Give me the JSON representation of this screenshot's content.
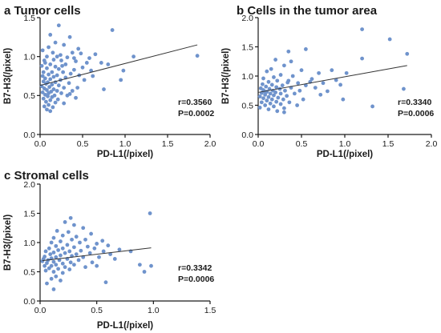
{
  "point_color": "#6f93cc",
  "line_color": "#333333",
  "chart_data": [
    {
      "type": "scatter",
      "title": "a Tumor cells",
      "xlabel": "PD-L1(/pixel)",
      "ylabel": "B7-H3(/pixel)",
      "xlim": [
        0,
        2.0
      ],
      "ylim": [
        0,
        1.5
      ],
      "xticks": [
        "0.0",
        "0.5",
        "1.0",
        "1.5",
        "2.0"
      ],
      "yticks": [
        "0.0",
        "0.5",
        "1.0",
        "1.5"
      ],
      "stats": [
        "r=0.3560",
        "P=0.0002"
      ],
      "fit": [
        [
          0.0,
          0.63
        ],
        [
          1.85,
          1.15
        ]
      ],
      "points": [
        [
          0.22,
          1.4
        ],
        [
          0.85,
          1.34
        ],
        [
          0.12,
          1.28
        ],
        [
          0.35,
          1.25
        ],
        [
          0.18,
          1.18
        ],
        [
          0.28,
          1.15
        ],
        [
          0.1,
          1.12
        ],
        [
          0.45,
          1.1
        ],
        [
          0.03,
          1.08
        ],
        [
          0.15,
          1.05
        ],
        [
          0.38,
          1.05
        ],
        [
          0.48,
          1.04
        ],
        [
          0.65,
          1.03
        ],
        [
          0.08,
          1.0
        ],
        [
          0.2,
          1.0
        ],
        [
          0.32,
          0.99
        ],
        [
          0.58,
          0.98
        ],
        [
          1.1,
          1.0
        ],
        [
          1.85,
          1.01
        ],
        [
          0.05,
          0.95
        ],
        [
          0.25,
          0.95
        ],
        [
          0.42,
          0.94
        ],
        [
          0.55,
          0.92
        ],
        [
          0.12,
          0.9
        ],
        [
          0.3,
          0.9
        ],
        [
          0.8,
          0.9
        ],
        [
          0.02,
          0.88
        ],
        [
          0.18,
          0.87
        ],
        [
          0.5,
          0.86
        ],
        [
          0.08,
          0.85
        ],
        [
          0.22,
          0.84
        ],
        [
          0.4,
          0.83
        ],
        [
          0.6,
          0.82
        ],
        [
          0.98,
          0.82
        ],
        [
          0.04,
          0.8
        ],
        [
          0.14,
          0.8
        ],
        [
          0.27,
          0.8
        ],
        [
          0.36,
          0.78
        ],
        [
          0.1,
          0.77
        ],
        [
          0.2,
          0.76
        ],
        [
          0.46,
          0.76
        ],
        [
          0.03,
          0.75
        ],
        [
          0.16,
          0.74
        ],
        [
          0.3,
          0.73
        ],
        [
          0.06,
          0.72
        ],
        [
          0.12,
          0.71
        ],
        [
          0.24,
          0.7
        ],
        [
          0.52,
          0.7
        ],
        [
          0.04,
          0.68
        ],
        [
          0.09,
          0.67
        ],
        [
          0.18,
          0.67
        ],
        [
          0.34,
          0.66
        ],
        [
          0.07,
          0.65
        ],
        [
          0.14,
          0.64
        ],
        [
          0.22,
          0.63
        ],
        [
          0.02,
          0.62
        ],
        [
          0.11,
          0.61
        ],
        [
          0.28,
          0.6
        ],
        [
          0.44,
          0.6
        ],
        [
          0.05,
          0.59
        ],
        [
          0.16,
          0.58
        ],
        [
          0.08,
          0.57
        ],
        [
          0.2,
          0.56
        ],
        [
          0.38,
          0.56
        ],
        [
          0.13,
          0.55
        ],
        [
          0.03,
          0.54
        ],
        [
          0.1,
          0.53
        ],
        [
          0.25,
          0.53
        ],
        [
          0.06,
          0.51
        ],
        [
          0.17,
          0.5
        ],
        [
          0.32,
          0.5
        ],
        [
          0.09,
          0.49
        ],
        [
          0.14,
          0.48
        ],
        [
          0.42,
          0.47
        ],
        [
          0.04,
          0.46
        ],
        [
          0.21,
          0.45
        ],
        [
          0.12,
          0.44
        ],
        [
          0.07,
          0.42
        ],
        [
          0.18,
          0.41
        ],
        [
          0.28,
          0.4
        ],
        [
          0.1,
          0.38
        ],
        [
          0.05,
          0.36
        ],
        [
          0.15,
          0.35
        ],
        [
          0.08,
          0.32
        ],
        [
          0.12,
          0.3
        ],
        [
          0.35,
          0.52
        ],
        [
          0.62,
          0.75
        ],
        [
          0.72,
          0.92
        ],
        [
          0.95,
          0.7
        ],
        [
          0.75,
          0.58
        ],
        [
          0.26,
          0.88
        ],
        [
          0.4,
          0.98
        ],
        [
          0.16,
          0.96
        ],
        [
          0.06,
          0.92
        ],
        [
          0.24,
          1.02
        ]
      ]
    },
    {
      "type": "scatter",
      "title": "b Cells in the tumor area",
      "xlabel": "PD-L1(/pixel)",
      "ylabel": "B7-H3(/pixel)",
      "xlim": [
        0,
        2.0
      ],
      "ylim": [
        0,
        2.0
      ],
      "xticks": [
        "0.0",
        "0.5",
        "1.0",
        "1.5",
        "2.0"
      ],
      "yticks": [
        "0.0",
        "0.5",
        "1.0",
        "1.5",
        "2.0"
      ],
      "stats": [
        "r=0.3340",
        "P=0.0006"
      ],
      "fit": [
        [
          0.0,
          0.72
        ],
        [
          1.72,
          1.18
        ]
      ],
      "points": [
        [
          1.2,
          1.8
        ],
        [
          1.52,
          1.63
        ],
        [
          1.72,
          1.38
        ],
        [
          0.55,
          1.46
        ],
        [
          0.35,
          1.42
        ],
        [
          1.2,
          1.3
        ],
        [
          0.2,
          1.28
        ],
        [
          0.38,
          1.25
        ],
        [
          0.3,
          1.18
        ],
        [
          0.15,
          1.12
        ],
        [
          0.1,
          1.08
        ],
        [
          0.5,
          1.1
        ],
        [
          0.85,
          1.1
        ],
        [
          0.7,
          1.05
        ],
        [
          1.02,
          1.05
        ],
        [
          0.26,
          1.02
        ],
        [
          0.4,
          1.0
        ],
        [
          0.18,
          0.98
        ],
        [
          0.06,
          0.96
        ],
        [
          0.62,
          0.95
        ],
        [
          0.9,
          0.93
        ],
        [
          0.22,
          0.92
        ],
        [
          0.12,
          0.9
        ],
        [
          0.34,
          0.89
        ],
        [
          0.46,
          0.88
        ],
        [
          0.75,
          0.88
        ],
        [
          0.05,
          0.86
        ],
        [
          0.16,
          0.85
        ],
        [
          0.28,
          0.84
        ],
        [
          0.55,
          0.84
        ],
        [
          0.09,
          0.82
        ],
        [
          0.21,
          0.81
        ],
        [
          0.38,
          0.8
        ],
        [
          0.66,
          0.8
        ],
        [
          0.03,
          0.79
        ],
        [
          0.13,
          0.78
        ],
        [
          0.25,
          0.78
        ],
        [
          0.06,
          0.76
        ],
        [
          0.17,
          0.75
        ],
        [
          0.31,
          0.75
        ],
        [
          0.48,
          0.75
        ],
        [
          0.8,
          0.74
        ],
        [
          0.1,
          0.73
        ],
        [
          0.2,
          0.72
        ],
        [
          0.04,
          0.71
        ],
        [
          0.14,
          0.7
        ],
        [
          0.26,
          0.7
        ],
        [
          0.42,
          0.7
        ],
        [
          0.08,
          0.68
        ],
        [
          0.18,
          0.67
        ],
        [
          0.33,
          0.66
        ],
        [
          0.02,
          0.65
        ],
        [
          0.12,
          0.64
        ],
        [
          0.23,
          0.63
        ],
        [
          0.06,
          0.62
        ],
        [
          0.16,
          0.6
        ],
        [
          0.29,
          0.6
        ],
        [
          0.52,
          0.6
        ],
        [
          0.98,
          0.6
        ],
        [
          0.1,
          0.58
        ],
        [
          0.21,
          0.56
        ],
        [
          0.04,
          0.55
        ],
        [
          0.36,
          0.55
        ],
        [
          0.14,
          0.53
        ],
        [
          0.26,
          0.52
        ],
        [
          0.08,
          0.5
        ],
        [
          0.45,
          0.5
        ],
        [
          0.18,
          0.48
        ],
        [
          0.02,
          0.46
        ],
        [
          0.3,
          0.45
        ],
        [
          0.12,
          0.43
        ],
        [
          0.22,
          0.4
        ],
        [
          1.32,
          0.48
        ],
        [
          1.68,
          0.78
        ],
        [
          0.72,
          0.68
        ],
        [
          0.6,
          0.9
        ],
        [
          0.95,
          0.85
        ],
        [
          0.3,
          0.38
        ],
        [
          0.07,
          0.74
        ],
        [
          0.35,
          0.92
        ]
      ]
    },
    {
      "type": "scatter",
      "title": "c Stromal cells",
      "xlabel": "PD-L1(/pixel)",
      "ylabel": "B7-H3(/pixel)",
      "xlim": [
        0,
        1.5
      ],
      "ylim": [
        0,
        2.0
      ],
      "xticks": [
        "0.0",
        "0.5",
        "1.0",
        "1.5"
      ],
      "yticks": [
        "0.0",
        "0.5",
        "1.0",
        "1.5",
        "2.0"
      ],
      "stats": [
        "r=0.3342",
        "P=0.0006"
      ],
      "fit": [
        [
          0.02,
          0.69
        ],
        [
          0.98,
          0.91
        ]
      ],
      "points": [
        [
          0.97,
          1.5
        ],
        [
          0.27,
          1.42
        ],
        [
          0.22,
          1.35
        ],
        [
          0.3,
          1.3
        ],
        [
          0.38,
          1.25
        ],
        [
          0.15,
          1.2
        ],
        [
          0.25,
          1.18
        ],
        [
          0.45,
          1.15
        ],
        [
          0.2,
          1.12
        ],
        [
          0.32,
          1.1
        ],
        [
          0.12,
          1.08
        ],
        [
          0.28,
          1.05
        ],
        [
          0.4,
          1.05
        ],
        [
          0.55,
          1.03
        ],
        [
          0.18,
          1.02
        ],
        [
          0.1,
          1.0
        ],
        [
          0.35,
          1.0
        ],
        [
          0.5,
          0.98
        ],
        [
          0.24,
          0.96
        ],
        [
          0.6,
          0.95
        ],
        [
          0.14,
          0.94
        ],
        [
          0.42,
          0.93
        ],
        [
          0.3,
          0.92
        ],
        [
          0.08,
          0.9
        ],
        [
          0.2,
          0.9
        ],
        [
          0.48,
          0.9
        ],
        [
          0.7,
          0.88
        ],
        [
          0.16,
          0.87
        ],
        [
          0.36,
          0.86
        ],
        [
          0.05,
          0.85
        ],
        [
          0.26,
          0.85
        ],
        [
          0.56,
          0.85
        ],
        [
          0.8,
          0.85
        ],
        [
          0.12,
          0.83
        ],
        [
          0.22,
          0.82
        ],
        [
          0.44,
          0.82
        ],
        [
          0.09,
          0.8
        ],
        [
          0.32,
          0.8
        ],
        [
          0.62,
          0.8
        ],
        [
          0.18,
          0.78
        ],
        [
          0.28,
          0.77
        ],
        [
          0.04,
          0.76
        ],
        [
          0.14,
          0.75
        ],
        [
          0.38,
          0.75
        ],
        [
          0.52,
          0.75
        ],
        [
          0.1,
          0.73
        ],
        [
          0.24,
          0.72
        ],
        [
          0.66,
          0.72
        ],
        [
          0.07,
          0.7
        ],
        [
          0.17,
          0.7
        ],
        [
          0.34,
          0.7
        ],
        [
          0.02,
          0.68
        ],
        [
          0.12,
          0.67
        ],
        [
          0.27,
          0.66
        ],
        [
          0.46,
          0.66
        ],
        [
          0.06,
          0.65
        ],
        [
          0.2,
          0.64
        ],
        [
          0.14,
          0.62
        ],
        [
          0.3,
          0.62
        ],
        [
          0.04,
          0.6
        ],
        [
          0.1,
          0.6
        ],
        [
          0.22,
          0.58
        ],
        [
          0.4,
          0.58
        ],
        [
          0.08,
          0.56
        ],
        [
          0.16,
          0.55
        ],
        [
          0.26,
          0.54
        ],
        [
          0.05,
          0.52
        ],
        [
          0.12,
          0.5
        ],
        [
          0.2,
          0.48
        ],
        [
          0.92,
          0.5
        ],
        [
          0.14,
          0.42
        ],
        [
          0.1,
          0.38
        ],
        [
          0.06,
          0.3
        ],
        [
          0.18,
          0.35
        ],
        [
          0.12,
          0.2
        ],
        [
          0.58,
          0.32
        ],
        [
          0.98,
          0.6
        ],
        [
          0.88,
          0.62
        ],
        [
          0.03,
          0.72
        ],
        [
          0.5,
          0.6
        ]
      ]
    }
  ]
}
